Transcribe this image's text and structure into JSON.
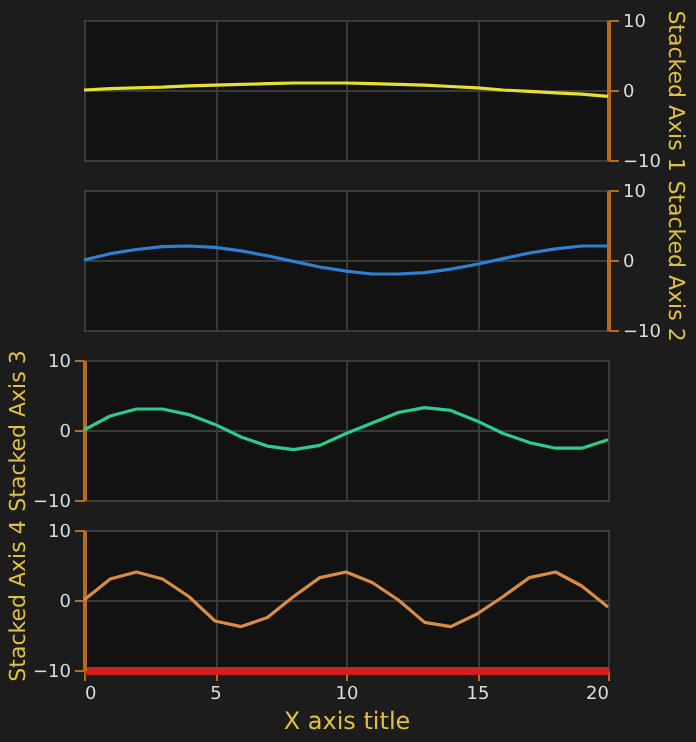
{
  "chart_data": [
    {
      "type": "line",
      "y2label": "Stacked Axis 1",
      "xlim": [
        0,
        20
      ],
      "y2lim": [
        -10,
        10
      ],
      "y2ticks": [
        -10,
        0,
        10
      ],
      "grid": true,
      "tick_labels": "y2",
      "x": [
        0,
        1,
        2,
        3,
        4,
        5,
        6,
        7,
        8,
        9,
        10,
        11,
        12,
        13,
        14,
        15,
        16,
        17,
        18,
        19,
        20
      ],
      "series": [
        {
          "color": "#e8e030",
          "axis": "y2",
          "values": [
            0,
            0.2,
            0.3,
            0.4,
            0.6,
            0.7,
            0.8,
            0.9,
            1,
            1,
            1,
            0.9,
            0.8,
            0.7,
            0.5,
            0.3,
            0,
            -0.2,
            -0.4,
            -0.6,
            -0.9
          ]
        }
      ]
    },
    {
      "type": "line",
      "y2label": "Stacked Axis 2",
      "xlim": [
        0,
        20
      ],
      "y2lim": [
        -10,
        10
      ],
      "y2ticks": [
        -10,
        0,
        10
      ],
      "grid": true,
      "tick_labels": "y2",
      "x": [
        0,
        1,
        2,
        3,
        4,
        5,
        6,
        7,
        8,
        9,
        10,
        11,
        12,
        13,
        14,
        15,
        16,
        17,
        18,
        19,
        20
      ],
      "series": [
        {
          "color": "#2f80d0",
          "axis": "y2",
          "values": [
            0,
            0.9,
            1.5,
            1.9,
            2,
            1.8,
            1.3,
            0.6,
            -0.2,
            -1,
            -1.6,
            -2,
            -2,
            -1.8,
            -1.3,
            -0.6,
            0.2,
            1,
            1.6,
            2,
            2
          ]
        }
      ]
    },
    {
      "type": "line",
      "ylabel": "Stacked Axis 3",
      "xlim": [
        0,
        20
      ],
      "ylim": [
        -10,
        10
      ],
      "yticks": [
        -10,
        0,
        10
      ],
      "grid": true,
      "tick_labels": "y",
      "x": [
        0,
        1,
        2,
        3,
        4,
        5,
        6,
        7,
        8,
        9,
        10,
        11,
        12,
        13,
        14,
        15,
        16,
        17,
        18,
        19,
        20
      ],
      "series": [
        {
          "color": "#2ecc8a",
          "values": [
            0,
            2,
            3,
            3,
            2.2,
            0.8,
            -1,
            -2.3,
            -2.8,
            -2.2,
            -0.5,
            1,
            2.5,
            3.2,
            2.8,
            1.3,
            -0.5,
            -1.8,
            -2.6,
            -2.6,
            -1.4
          ]
        }
      ]
    },
    {
      "type": "line",
      "ylabel": "Stacked Axis 4",
      "xlabel": "X axis title",
      "xlim": [
        0,
        20
      ],
      "xticks": [
        0,
        5,
        10,
        15,
        20
      ],
      "ylim": [
        -10,
        10
      ],
      "yticks": [
        -10,
        0,
        10
      ],
      "grid": true,
      "x": [
        0,
        1,
        2,
        3,
        4,
        5,
        6,
        7,
        8,
        9,
        10,
        11,
        12,
        13,
        14,
        15,
        16,
        17,
        18,
        19,
        20
      ],
      "series": [
        {
          "color": "#d98c45",
          "values": [
            0,
            3,
            4,
            3,
            0.5,
            -3,
            -3.8,
            -2.5,
            0.5,
            3.2,
            4,
            2.5,
            0,
            -3.2,
            -3.8,
            -2,
            0.5,
            3.2,
            4,
            2,
            -1
          ]
        }
      ]
    }
  ]
}
